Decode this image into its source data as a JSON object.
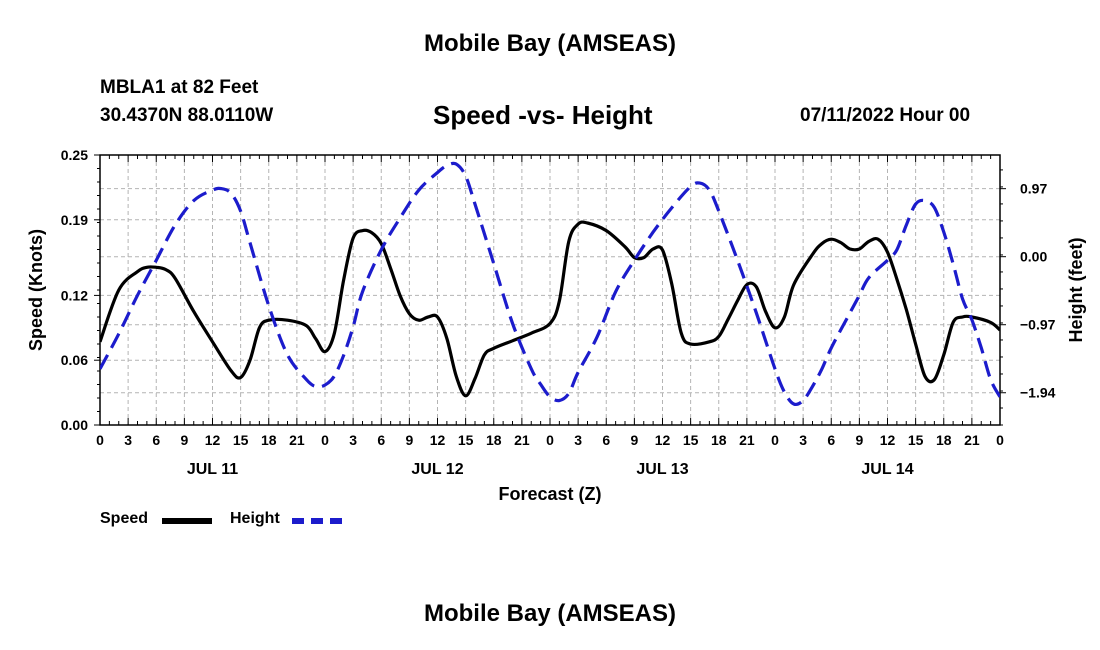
{
  "header": {
    "title": "Mobile Bay (AMSEAS)",
    "station": "MBLA1 at 82 Feet",
    "coords": "30.4370N  88.0110W",
    "subtitle": "Speed -vs- Height",
    "forecast_time": "07/11/2022 Hour 00"
  },
  "footer": {
    "title": "Mobile Bay (AMSEAS)"
  },
  "legend": {
    "speed_label": "Speed",
    "height_label": "Height"
  },
  "colors": {
    "speed": "#000000",
    "height": "#1c1ccc",
    "grid": "#b4b4b4"
  },
  "chart_data": {
    "type": "line",
    "xlabel": "Forecast (Z)",
    "ylabel": "Speed (Knots)",
    "y2label": "Height (feet)",
    "xlim": [
      0,
      96
    ],
    "ylim": [
      0,
      0.25
    ],
    "y2lim": [
      -2.4,
      1.45
    ],
    "x_ticks": [
      0,
      3,
      6,
      9,
      12,
      15,
      18,
      21,
      24,
      27,
      30,
      33,
      36,
      39,
      42,
      45,
      48,
      51,
      54,
      57,
      60,
      63,
      66,
      69,
      72,
      75,
      78,
      81,
      84,
      87,
      90,
      93,
      96
    ],
    "x_tick_labels": [
      "0",
      "3",
      "6",
      "9",
      "12",
      "15",
      "18",
      "21",
      "0",
      "3",
      "6",
      "9",
      "12",
      "15",
      "18",
      "21",
      "0",
      "3",
      "6",
      "9",
      "12",
      "15",
      "18",
      "21",
      "0",
      "3",
      "6",
      "9",
      "12",
      "15",
      "18",
      "21",
      "0"
    ],
    "day_labels": [
      {
        "x": 12,
        "label": "JUL 11"
      },
      {
        "x": 36,
        "label": "JUL 12"
      },
      {
        "x": 60,
        "label": "JUL 13"
      },
      {
        "x": 84,
        "label": "JUL 14"
      }
    ],
    "y_ticks": [
      0.0,
      0.06,
      0.12,
      0.19,
      0.25
    ],
    "y_tick_labels": [
      "0.00",
      "0.06",
      "0.12",
      "0.19",
      "0.25"
    ],
    "y2_ticks": [
      0.97,
      0.0,
      -0.97,
      -1.94
    ],
    "y2_tick_labels": [
      "0.97",
      "0.00",
      "−0.97",
      "−1.94"
    ],
    "series": [
      {
        "name": "Speed",
        "axis": "left",
        "style": "solid",
        "points": [
          [
            0,
            0.077
          ],
          [
            2,
            0.125
          ],
          [
            4,
            0.142
          ],
          [
            5,
            0.146
          ],
          [
            6,
            0.146
          ],
          [
            7,
            0.144
          ],
          [
            8,
            0.136
          ],
          [
            10,
            0.105
          ],
          [
            12,
            0.077
          ],
          [
            14,
            0.05
          ],
          [
            15,
            0.044
          ],
          [
            16,
            0.06
          ],
          [
            17,
            0.09
          ],
          [
            18,
            0.097
          ],
          [
            20,
            0.097
          ],
          [
            22,
            0.092
          ],
          [
            23,
            0.08
          ],
          [
            24,
            0.068
          ],
          [
            25,
            0.085
          ],
          [
            26,
            0.135
          ],
          [
            27,
            0.173
          ],
          [
            28,
            0.18
          ],
          [
            29,
            0.178
          ],
          [
            30,
            0.168
          ],
          [
            31,
            0.145
          ],
          [
            32,
            0.12
          ],
          [
            33,
            0.103
          ],
          [
            34,
            0.097
          ],
          [
            35,
            0.1
          ],
          [
            36,
            0.1
          ],
          [
            37,
            0.08
          ],
          [
            38,
            0.045
          ],
          [
            39,
            0.027
          ],
          [
            40,
            0.043
          ],
          [
            41,
            0.065
          ],
          [
            42,
            0.071
          ],
          [
            44,
            0.078
          ],
          [
            46,
            0.085
          ],
          [
            48,
            0.094
          ],
          [
            49,
            0.115
          ],
          [
            50,
            0.17
          ],
          [
            51,
            0.186
          ],
          [
            52,
            0.187
          ],
          [
            54,
            0.18
          ],
          [
            56,
            0.165
          ],
          [
            57,
            0.155
          ],
          [
            58,
            0.155
          ],
          [
            59,
            0.163
          ],
          [
            60,
            0.162
          ],
          [
            61,
            0.13
          ],
          [
            62,
            0.085
          ],
          [
            63,
            0.075
          ],
          [
            65,
            0.077
          ],
          [
            66,
            0.082
          ],
          [
            67,
            0.098
          ],
          [
            68,
            0.115
          ],
          [
            69,
            0.13
          ],
          [
            70,
            0.128
          ],
          [
            71,
            0.105
          ],
          [
            72,
            0.09
          ],
          [
            73,
            0.1
          ],
          [
            74,
            0.13
          ],
          [
            76,
            0.158
          ],
          [
            77,
            0.168
          ],
          [
            78,
            0.172
          ],
          [
            79,
            0.169
          ],
          [
            80,
            0.163
          ],
          [
            81,
            0.163
          ],
          [
            82,
            0.17
          ],
          [
            83,
            0.172
          ],
          [
            84,
            0.16
          ],
          [
            85,
            0.135
          ],
          [
            86,
            0.107
          ],
          [
            87,
            0.075
          ],
          [
            88,
            0.045
          ],
          [
            89,
            0.042
          ],
          [
            90,
            0.065
          ],
          [
            91,
            0.095
          ],
          [
            92,
            0.1
          ],
          [
            93,
            0.1
          ],
          [
            95,
            0.095
          ],
          [
            96,
            0.088
          ]
        ]
      },
      {
        "name": "Height",
        "axis": "right",
        "style": "dashed",
        "points": [
          [
            0,
            -1.6
          ],
          [
            2,
            -1.1
          ],
          [
            4,
            -0.55
          ],
          [
            6,
            -0.05
          ],
          [
            8,
            0.45
          ],
          [
            10,
            0.8
          ],
          [
            12,
            0.95
          ],
          [
            13,
            0.97
          ],
          [
            14,
            0.9
          ],
          [
            15,
            0.65
          ],
          [
            16,
            0.2
          ],
          [
            18,
            -0.7
          ],
          [
            20,
            -1.4
          ],
          [
            22,
            -1.75
          ],
          [
            23,
            -1.85
          ],
          [
            24,
            -1.83
          ],
          [
            25,
            -1.7
          ],
          [
            26,
            -1.4
          ],
          [
            27,
            -1.0
          ],
          [
            28,
            -0.5
          ],
          [
            30,
            0.1
          ],
          [
            32,
            0.55
          ],
          [
            34,
            0.95
          ],
          [
            36,
            1.2
          ],
          [
            37,
            1.3
          ],
          [
            38,
            1.32
          ],
          [
            39,
            1.15
          ],
          [
            40,
            0.75
          ],
          [
            42,
            -0.1
          ],
          [
            44,
            -0.95
          ],
          [
            46,
            -1.6
          ],
          [
            47,
            -1.82
          ],
          [
            48,
            -2.0
          ],
          [
            49,
            -2.05
          ],
          [
            50,
            -1.95
          ],
          [
            51,
            -1.65
          ],
          [
            53,
            -1.15
          ],
          [
            55,
            -0.5
          ],
          [
            57,
            -0.05
          ],
          [
            59,
            0.35
          ],
          [
            61,
            0.7
          ],
          [
            63,
            1.0
          ],
          [
            64,
            1.05
          ],
          [
            65,
            0.95
          ],
          [
            66,
            0.65
          ],
          [
            68,
            -0.05
          ],
          [
            70,
            -0.8
          ],
          [
            72,
            -1.6
          ],
          [
            73,
            -1.93
          ],
          [
            74,
            -2.1
          ],
          [
            75,
            -2.05
          ],
          [
            76,
            -1.85
          ],
          [
            77,
            -1.6
          ],
          [
            78,
            -1.3
          ],
          [
            80,
            -0.8
          ],
          [
            81,
            -0.55
          ],
          [
            82,
            -0.3
          ],
          [
            84,
            -0.05
          ],
          [
            85,
            0.1
          ],
          [
            86,
            0.45
          ],
          [
            87,
            0.75
          ],
          [
            88,
            0.8
          ],
          [
            89,
            0.7
          ],
          [
            90,
            0.35
          ],
          [
            91,
            -0.1
          ],
          [
            92,
            -0.6
          ],
          [
            93,
            -0.9
          ],
          [
            94,
            -1.3
          ],
          [
            95,
            -1.75
          ],
          [
            96,
            -2.0
          ]
        ]
      }
    ]
  }
}
